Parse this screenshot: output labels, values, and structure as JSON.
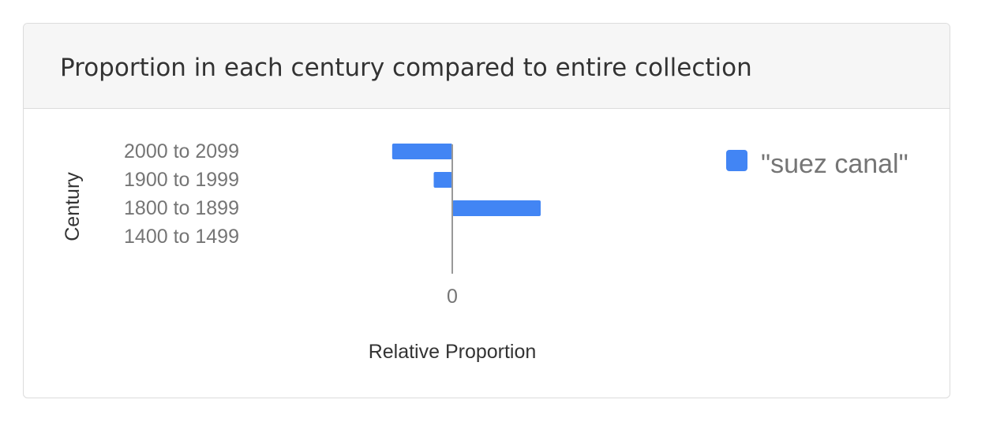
{
  "panel": {
    "title": "Proportion in each century compared to entire collection"
  },
  "chart_data": {
    "type": "bar",
    "orientation": "horizontal",
    "categories": [
      "2000 to 2099",
      "1900 to 1999",
      "1800 to 1899",
      "1400 to 1499"
    ],
    "series": [
      {
        "name": "\"suez canal\"",
        "color": "#4285f4",
        "values": [
          -0.68,
          -0.21,
          1.0,
          0
        ]
      }
    ],
    "xlabel": "Relative Proportion",
    "ylabel": "Century",
    "x_ticks": [
      "0"
    ],
    "xlim": [
      -1.0,
      1.0
    ],
    "legend_position": "top-right",
    "grid": false,
    "baseline_color": "#999999"
  }
}
